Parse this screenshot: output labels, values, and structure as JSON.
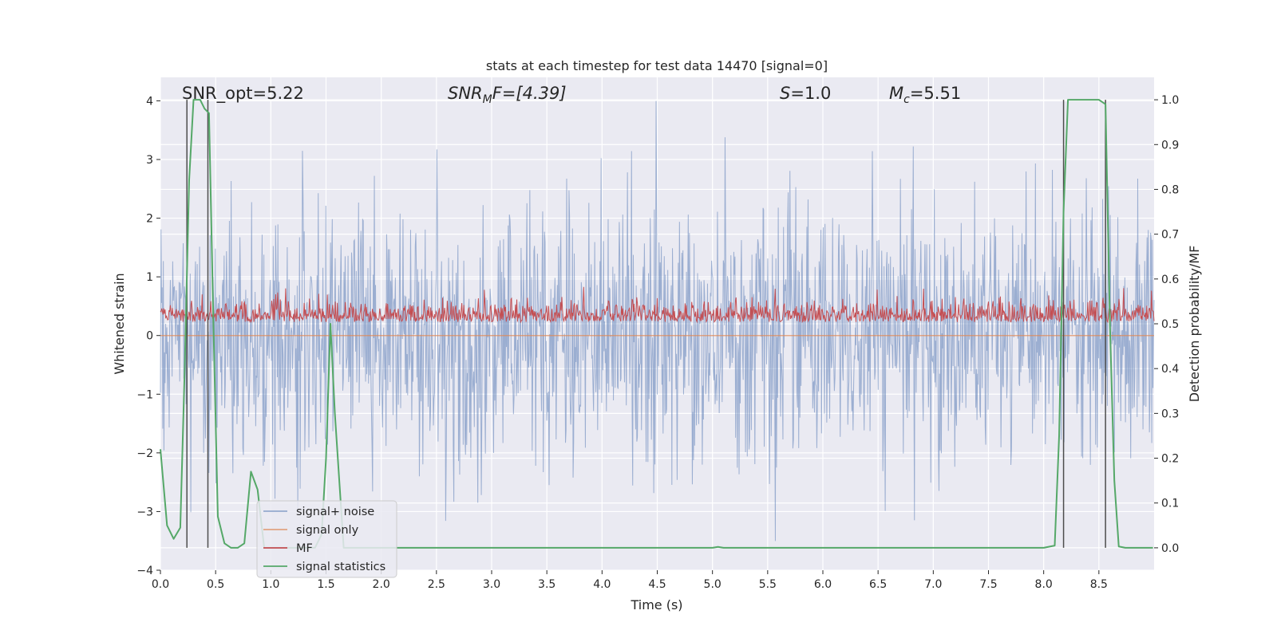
{
  "chart_data": {
    "type": "line",
    "title": "stats at each timestep for test data 14470 [signal=0]",
    "xlabel": "Time (s)",
    "ylabel_left": "Whitened strain",
    "ylabel_right": "Detection probability/MF",
    "xlim": [
      0.0,
      9.0
    ],
    "ylim_left": [
      -4.0,
      4.4
    ],
    "ylim_right": [
      -0.05,
      1.05
    ],
    "x_ticks": [
      "0.0",
      "0.5",
      "1.0",
      "1.5",
      "2.0",
      "2.5",
      "3.0",
      "3.5",
      "4.0",
      "4.5",
      "5.0",
      "5.5",
      "6.0",
      "6.5",
      "7.0",
      "7.5",
      "8.0",
      "8.5"
    ],
    "y_ticks_left": [
      "4",
      "3",
      "2",
      "1",
      "0",
      "−1",
      "−2",
      "−3",
      "−4"
    ],
    "y_ticks_right": [
      "1.0",
      "0.9",
      "0.8",
      "0.7",
      "0.6",
      "0.5",
      "0.4",
      "0.3",
      "0.2",
      "0.1",
      "0.0"
    ],
    "grid": true,
    "legend_position": "lower-left",
    "annotations": {
      "snr_opt": "SNR_opt=5.22",
      "snr_mf_sym": "SNR",
      "snr_mf_sub": "M",
      "snr_mf_rest": "F=[4.39]",
      "s_sym": "S",
      "s_rest": "=1.0",
      "mc_sym": "M",
      "mc_sub": "c",
      "mc_rest": "=5.51"
    },
    "series": [
      {
        "name": "signal+ noise",
        "color": "#4c72b0",
        "axis": "left",
        "style": "dense noise, approx range -3.6 to 4.0"
      },
      {
        "name": "signal only",
        "color": "#dd8452",
        "axis": "left",
        "style": "flat at 0"
      },
      {
        "name": "MF",
        "color": "#c44e52",
        "axis": "left",
        "style": "dense band, approx 0 to 0.9"
      },
      {
        "name": "signal statistics",
        "color": "#55a868",
        "axis": "right",
        "x": [
          0.0,
          0.06,
          0.12,
          0.18,
          0.22,
          0.26,
          0.3,
          0.36,
          0.4,
          0.44,
          0.48,
          0.52,
          0.58,
          0.64,
          0.7,
          0.76,
          0.82,
          0.88,
          0.94,
          1.0,
          1.1,
          1.2,
          1.3,
          1.4,
          1.46,
          1.5,
          1.54,
          1.58,
          1.62,
          1.66,
          1.72,
          1.8,
          2.0,
          3.0,
          4.0,
          5.0,
          5.05,
          5.1,
          6.0,
          7.0,
          8.0,
          8.1,
          8.14,
          8.18,
          8.22,
          8.26,
          8.3,
          8.4,
          8.5,
          8.56,
          8.6,
          8.64,
          8.68,
          8.74,
          8.8,
          8.9,
          8.99
        ],
        "y": [
          0.22,
          0.05,
          0.02,
          0.045,
          0.4,
          0.82,
          1.0,
          1.0,
          0.98,
          0.97,
          0.5,
          0.07,
          0.01,
          0.0,
          0.0,
          0.01,
          0.17,
          0.13,
          0.0,
          0.0,
          0.0,
          0.0,
          0.0,
          0.0,
          0.03,
          0.2,
          0.5,
          0.3,
          0.15,
          0.0,
          0.0,
          0.0,
          0.0,
          0.0,
          0.0,
          0.0,
          0.002,
          0.0,
          0.0,
          0.0,
          0.0,
          0.005,
          0.25,
          0.75,
          1.0,
          1.0,
          1.0,
          1.0,
          1.0,
          0.99,
          0.5,
          0.15,
          0.003,
          0.0,
          0.0,
          0.0,
          0.0
        ]
      }
    ],
    "vertical_lines_x": [
      0.24,
      0.43,
      8.18,
      8.56
    ]
  }
}
